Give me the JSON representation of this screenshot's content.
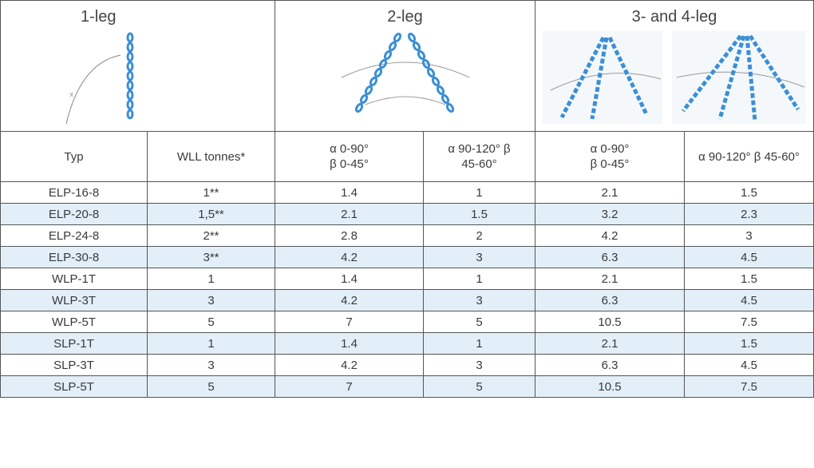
{
  "groups": {
    "one_leg": "1-leg",
    "two_leg": "2-leg",
    "three_four_leg": "3- and 4-leg"
  },
  "columns": {
    "typ": "Typ",
    "wll": "WLL tonnes*",
    "two_leg_a_line1": "α 0-90°",
    "two_leg_a_line2": "β 0-45°",
    "two_leg_b_line1": "α 90-120° β",
    "two_leg_b_line2": "45-60°",
    "three_leg_a_line1": "α 0-90°",
    "three_leg_a_line2": "β 0-45°",
    "three_leg_b": "α 90-120° β 45-60°"
  },
  "rows": [
    [
      "ELP-16-8",
      "1**",
      "1.4",
      "1",
      "2.1",
      "1.5"
    ],
    [
      "ELP-20-8",
      "1,5**",
      "2.1",
      "1.5",
      "3.2",
      "2.3"
    ],
    [
      "ELP-24-8",
      "2**",
      "2.8",
      "2",
      "4.2",
      "3"
    ],
    [
      "ELP-30-8",
      "3**",
      "4.2",
      "3",
      "6.3",
      "4.5"
    ],
    [
      "WLP-1T",
      "1",
      "1.4",
      "1",
      "2.1",
      "1.5"
    ],
    [
      "WLP-3T",
      "3",
      "4.2",
      "3",
      "6.3",
      "4.5"
    ],
    [
      "WLP-5T",
      "5",
      "7",
      "5",
      "10.5",
      "7.5"
    ],
    [
      "SLP-1T",
      "1",
      "1.4",
      "1",
      "2.1",
      "1.5"
    ],
    [
      "SLP-3T",
      "3",
      "4.2",
      "3",
      "6.3",
      "4.5"
    ],
    [
      "SLP-5T",
      "5",
      "7",
      "5",
      "10.5",
      "7.5"
    ]
  ],
  "colors": {
    "alt_row": "#e2eff9",
    "chain_blue": "#3b8fd6",
    "border": "#555555"
  }
}
